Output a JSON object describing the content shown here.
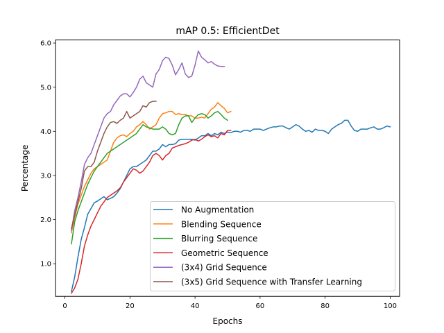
{
  "chart_data": {
    "type": "line",
    "title": "mAP 0.5: EfficientDet",
    "xlabel": "Epochs",
    "ylabel": "Percentage",
    "xlim": [
      -2.9,
      102.9
    ],
    "ylim": [
      0.26,
      6.07
    ],
    "xticks": [
      0,
      20,
      40,
      60,
      80,
      100
    ],
    "yticks": [
      1.0,
      2.0,
      3.0,
      4.0,
      5.0,
      6.0
    ],
    "xtick_labels": [
      "0",
      "20",
      "40",
      "60",
      "80",
      "100"
    ],
    "ytick_labels": [
      "1.0",
      "2.0",
      "3.0",
      "4.0",
      "5.0",
      "6.0"
    ],
    "grid": false,
    "legend_position": "lower-right",
    "series": [
      {
        "name": "No Augmentation",
        "color": "#1f77b4",
        "x": [
          2,
          3,
          4,
          5,
          6,
          7,
          8,
          9,
          10,
          11,
          12,
          13,
          14,
          15,
          16,
          17,
          18,
          19,
          20,
          21,
          22,
          23,
          24,
          25,
          26,
          27,
          28,
          29,
          30,
          31,
          32,
          33,
          34,
          35,
          36,
          37,
          38,
          39,
          40,
          41,
          42,
          43,
          44,
          45,
          46,
          47,
          48,
          49,
          50,
          51,
          52,
          53,
          54,
          55,
          56,
          57,
          58,
          59,
          60,
          61,
          62,
          63,
          64,
          65,
          66,
          67,
          68,
          69,
          70,
          71,
          72,
          73,
          74,
          75,
          76,
          77,
          78,
          79,
          80,
          81,
          82,
          83,
          84,
          85,
          86,
          87,
          88,
          89,
          90,
          91,
          92,
          93,
          94,
          95,
          96,
          97,
          98,
          99,
          100
        ],
        "y": [
          0.37,
          0.7,
          1.15,
          1.55,
          1.82,
          2.12,
          2.25,
          2.38,
          2.42,
          2.47,
          2.52,
          2.45,
          2.48,
          2.52,
          2.6,
          2.7,
          2.85,
          3.0,
          3.15,
          3.2,
          3.2,
          3.25,
          3.3,
          3.35,
          3.45,
          3.55,
          3.55,
          3.6,
          3.7,
          3.65,
          3.7,
          3.7,
          3.72,
          3.8,
          3.82,
          3.82,
          3.82,
          3.82,
          3.8,
          3.85,
          3.9,
          3.9,
          3.95,
          3.9,
          3.95,
          3.92,
          3.98,
          3.95,
          3.98,
          3.97,
          4.0,
          4.0,
          3.98,
          4.02,
          4.02,
          4.0,
          4.05,
          4.05,
          4.05,
          4.02,
          4.05,
          4.08,
          4.1,
          4.1,
          4.12,
          4.12,
          4.08,
          4.05,
          4.1,
          4.15,
          4.12,
          4.05,
          4.0,
          4.02,
          3.98,
          4.05,
          4.02,
          4.02,
          4.0,
          3.95,
          4.05,
          4.1,
          4.15,
          4.18,
          4.25,
          4.25,
          4.12,
          4.02,
          4.0,
          4.05,
          4.05,
          4.05,
          4.08,
          4.1,
          4.05,
          4.05,
          4.08,
          4.12,
          4.1
        ]
      },
      {
        "name": "Blending Sequence",
        "color": "#ff7f0e",
        "x": [
          2,
          3,
          4,
          5,
          6,
          7,
          8,
          9,
          10,
          11,
          12,
          13,
          14,
          15,
          16,
          17,
          18,
          19,
          20,
          21,
          22,
          23,
          24,
          25,
          26,
          27,
          28,
          29,
          30,
          31,
          32,
          33,
          34,
          35,
          36,
          37,
          38,
          39,
          40,
          41,
          42,
          43,
          44,
          45,
          46,
          47,
          48,
          49,
          50,
          51
        ],
        "y": [
          1.7,
          2.05,
          2.35,
          2.55,
          2.75,
          2.9,
          3.05,
          3.15,
          3.2,
          3.25,
          3.3,
          3.35,
          3.55,
          3.75,
          3.85,
          3.9,
          3.92,
          3.88,
          3.95,
          4.0,
          4.1,
          4.15,
          4.22,
          4.15,
          4.05,
          4.1,
          4.15,
          4.3,
          4.4,
          4.42,
          4.45,
          4.45,
          4.38,
          4.4,
          4.38,
          4.38,
          4.35,
          4.35,
          4.3,
          4.3,
          4.32,
          4.3,
          4.4,
          4.5,
          4.55,
          4.65,
          4.58,
          4.52,
          4.42,
          4.45
        ]
      },
      {
        "name": "Blurring Sequence",
        "color": "#2ca02c",
        "x": [
          2,
          3,
          4,
          5,
          6,
          7,
          8,
          9,
          10,
          11,
          12,
          13,
          14,
          15,
          16,
          17,
          18,
          19,
          20,
          21,
          22,
          23,
          24,
          25,
          26,
          27,
          28,
          29,
          30,
          31,
          32,
          33,
          34,
          35,
          36,
          37,
          38,
          39,
          40,
          41,
          42,
          43,
          44,
          45,
          46,
          47,
          48,
          49,
          50
        ],
        "y": [
          1.45,
          1.95,
          2.2,
          2.4,
          2.6,
          2.8,
          2.95,
          3.1,
          3.2,
          3.3,
          3.4,
          3.5,
          3.55,
          3.6,
          3.65,
          3.7,
          3.75,
          3.8,
          3.85,
          3.9,
          3.95,
          4.05,
          4.15,
          4.1,
          4.08,
          4.05,
          4.05,
          4.05,
          4.1,
          4.05,
          3.95,
          3.92,
          3.95,
          4.15,
          4.3,
          4.35,
          4.35,
          4.2,
          4.3,
          4.38,
          4.4,
          4.38,
          4.3,
          4.35,
          4.42,
          4.45,
          4.38,
          4.3,
          4.25
        ]
      },
      {
        "name": "Geometric Sequence",
        "color": "#d62728",
        "x": [
          2,
          3,
          4,
          5,
          6,
          7,
          8,
          9,
          10,
          11,
          12,
          13,
          14,
          15,
          16,
          17,
          18,
          19,
          20,
          21,
          22,
          23,
          24,
          25,
          26,
          27,
          28,
          29,
          30,
          31,
          32,
          33,
          34,
          35,
          36,
          37,
          38,
          39,
          40,
          41,
          42,
          43,
          44,
          45,
          46,
          47,
          48,
          49,
          50,
          51
        ],
        "y": [
          0.33,
          0.45,
          0.65,
          1.0,
          1.4,
          1.65,
          1.85,
          2.0,
          2.15,
          2.3,
          2.4,
          2.5,
          2.55,
          2.6,
          2.65,
          2.72,
          2.85,
          2.95,
          3.05,
          3.15,
          3.12,
          3.05,
          3.1,
          3.2,
          3.3,
          3.45,
          3.5,
          3.45,
          3.35,
          3.45,
          3.5,
          3.62,
          3.65,
          3.68,
          3.7,
          3.72,
          3.75,
          3.8,
          3.82,
          3.78,
          3.82,
          3.88,
          3.92,
          3.88,
          3.9,
          3.85,
          3.95,
          3.92,
          4.02,
          4.02
        ]
      },
      {
        "name": "(3x4) Grid Sequence",
        "color": "#9467bd",
        "x": [
          2,
          3,
          4,
          5,
          6,
          7,
          8,
          9,
          10,
          11,
          12,
          13,
          14,
          15,
          16,
          17,
          18,
          19,
          20,
          21,
          22,
          23,
          24,
          25,
          26,
          27,
          28,
          29,
          30,
          31,
          32,
          33,
          34,
          35,
          36,
          37,
          38,
          39,
          40,
          41,
          42,
          43,
          44,
          45,
          46,
          47,
          48,
          49
        ],
        "y": [
          1.75,
          2.2,
          2.5,
          2.85,
          3.25,
          3.4,
          3.5,
          3.7,
          3.9,
          4.1,
          4.3,
          4.4,
          4.45,
          4.6,
          4.7,
          4.8,
          4.85,
          4.85,
          4.78,
          4.88,
          5.0,
          5.18,
          5.25,
          5.1,
          5.05,
          5.0,
          5.3,
          5.4,
          5.6,
          5.68,
          5.65,
          5.5,
          5.28,
          5.4,
          5.55,
          5.3,
          5.22,
          5.25,
          5.5,
          5.82,
          5.68,
          5.62,
          5.55,
          5.58,
          5.52,
          5.48,
          5.47,
          5.47
        ]
      },
      {
        "name": "(3x5) Grid Sequence with Transfer Learning",
        "color": "#8c564b",
        "x": [
          2,
          3,
          4,
          5,
          6,
          7,
          8,
          9,
          10,
          11,
          12,
          13,
          14,
          15,
          16,
          17,
          18,
          19,
          20,
          21,
          22,
          23,
          24,
          25,
          26,
          27,
          28
        ],
        "y": [
          1.8,
          2.1,
          2.4,
          2.7,
          3.1,
          3.2,
          3.2,
          3.3,
          3.55,
          3.75,
          3.95,
          4.1,
          4.2,
          4.22,
          4.18,
          4.25,
          4.3,
          4.45,
          4.3,
          4.35,
          4.4,
          4.45,
          4.58,
          4.55,
          4.65,
          4.68,
          4.68
        ]
      }
    ]
  }
}
